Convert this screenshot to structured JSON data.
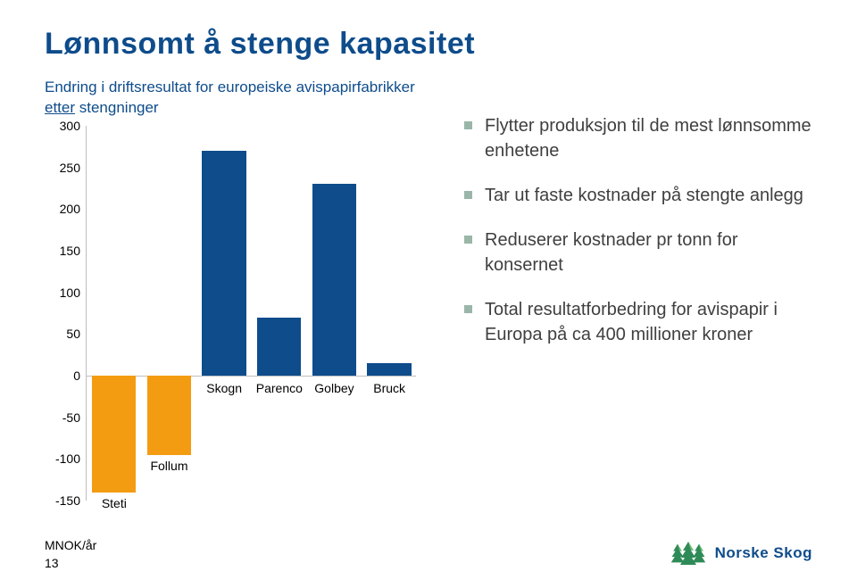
{
  "title": {
    "text": "Lønnsomt å stenge kapasitet",
    "color": "#0e4c8b",
    "fontsize": 34
  },
  "subtitle": {
    "pre": "Endring i driftsresultat for europeiske avispapirfabrikker ",
    "underlined": "etter",
    "post": " stengninger",
    "color": "#0e4c8b",
    "fontsize": 17
  },
  "chart": {
    "type": "bar",
    "ymin": -150,
    "ymax": 300,
    "ytick_step": 50,
    "axis_color": "#bfbfbf",
    "zero_color": "#bfbfbf",
    "tick_fontsize": 14,
    "label_fontsize": 14,
    "bars": [
      {
        "label": "Steti",
        "category_pos": "bottom",
        "value": -140,
        "color": "#f39c12"
      },
      {
        "label": "Follum",
        "category_pos": "bottom",
        "value": -95,
        "color": "#f39c12"
      },
      {
        "label": "Skogn",
        "category_pos": "top",
        "value": 270,
        "color": "#0e4c8b"
      },
      {
        "label": "Parenco",
        "category_pos": "top",
        "value": 70,
        "color": "#0e4c8b"
      },
      {
        "label": "Golbey",
        "category_pos": "top",
        "value": 230,
        "color": "#0e4c8b"
      },
      {
        "label": "Bruck",
        "category_pos": "top",
        "value": 15,
        "color": "#0e4c8b"
      }
    ]
  },
  "bullets": {
    "marker_color": "#9ab6a8",
    "text_color": "#3f3f3f",
    "fontsize": 20,
    "items": [
      {
        "text": "Flytter produksjon til de mest lønnsomme enhetene"
      },
      {
        "text": "Tar ut faste kostnader på stengte anlegg"
      },
      {
        "text": "Reduserer kostnader pr tonn for konsernet"
      },
      {
        "text": "Total resultatforbedring for avispapir i Europa på ca 400 millioner kroner"
      }
    ]
  },
  "footer": {
    "unit": "MNOK/år",
    "page": "13",
    "color": "#000000",
    "fontsize": 14
  },
  "brand": {
    "name": "Norske Skog",
    "text_color": "#0e4c8b",
    "icon_color": "#2e8b57",
    "icon_accent": "#6fbf73"
  }
}
